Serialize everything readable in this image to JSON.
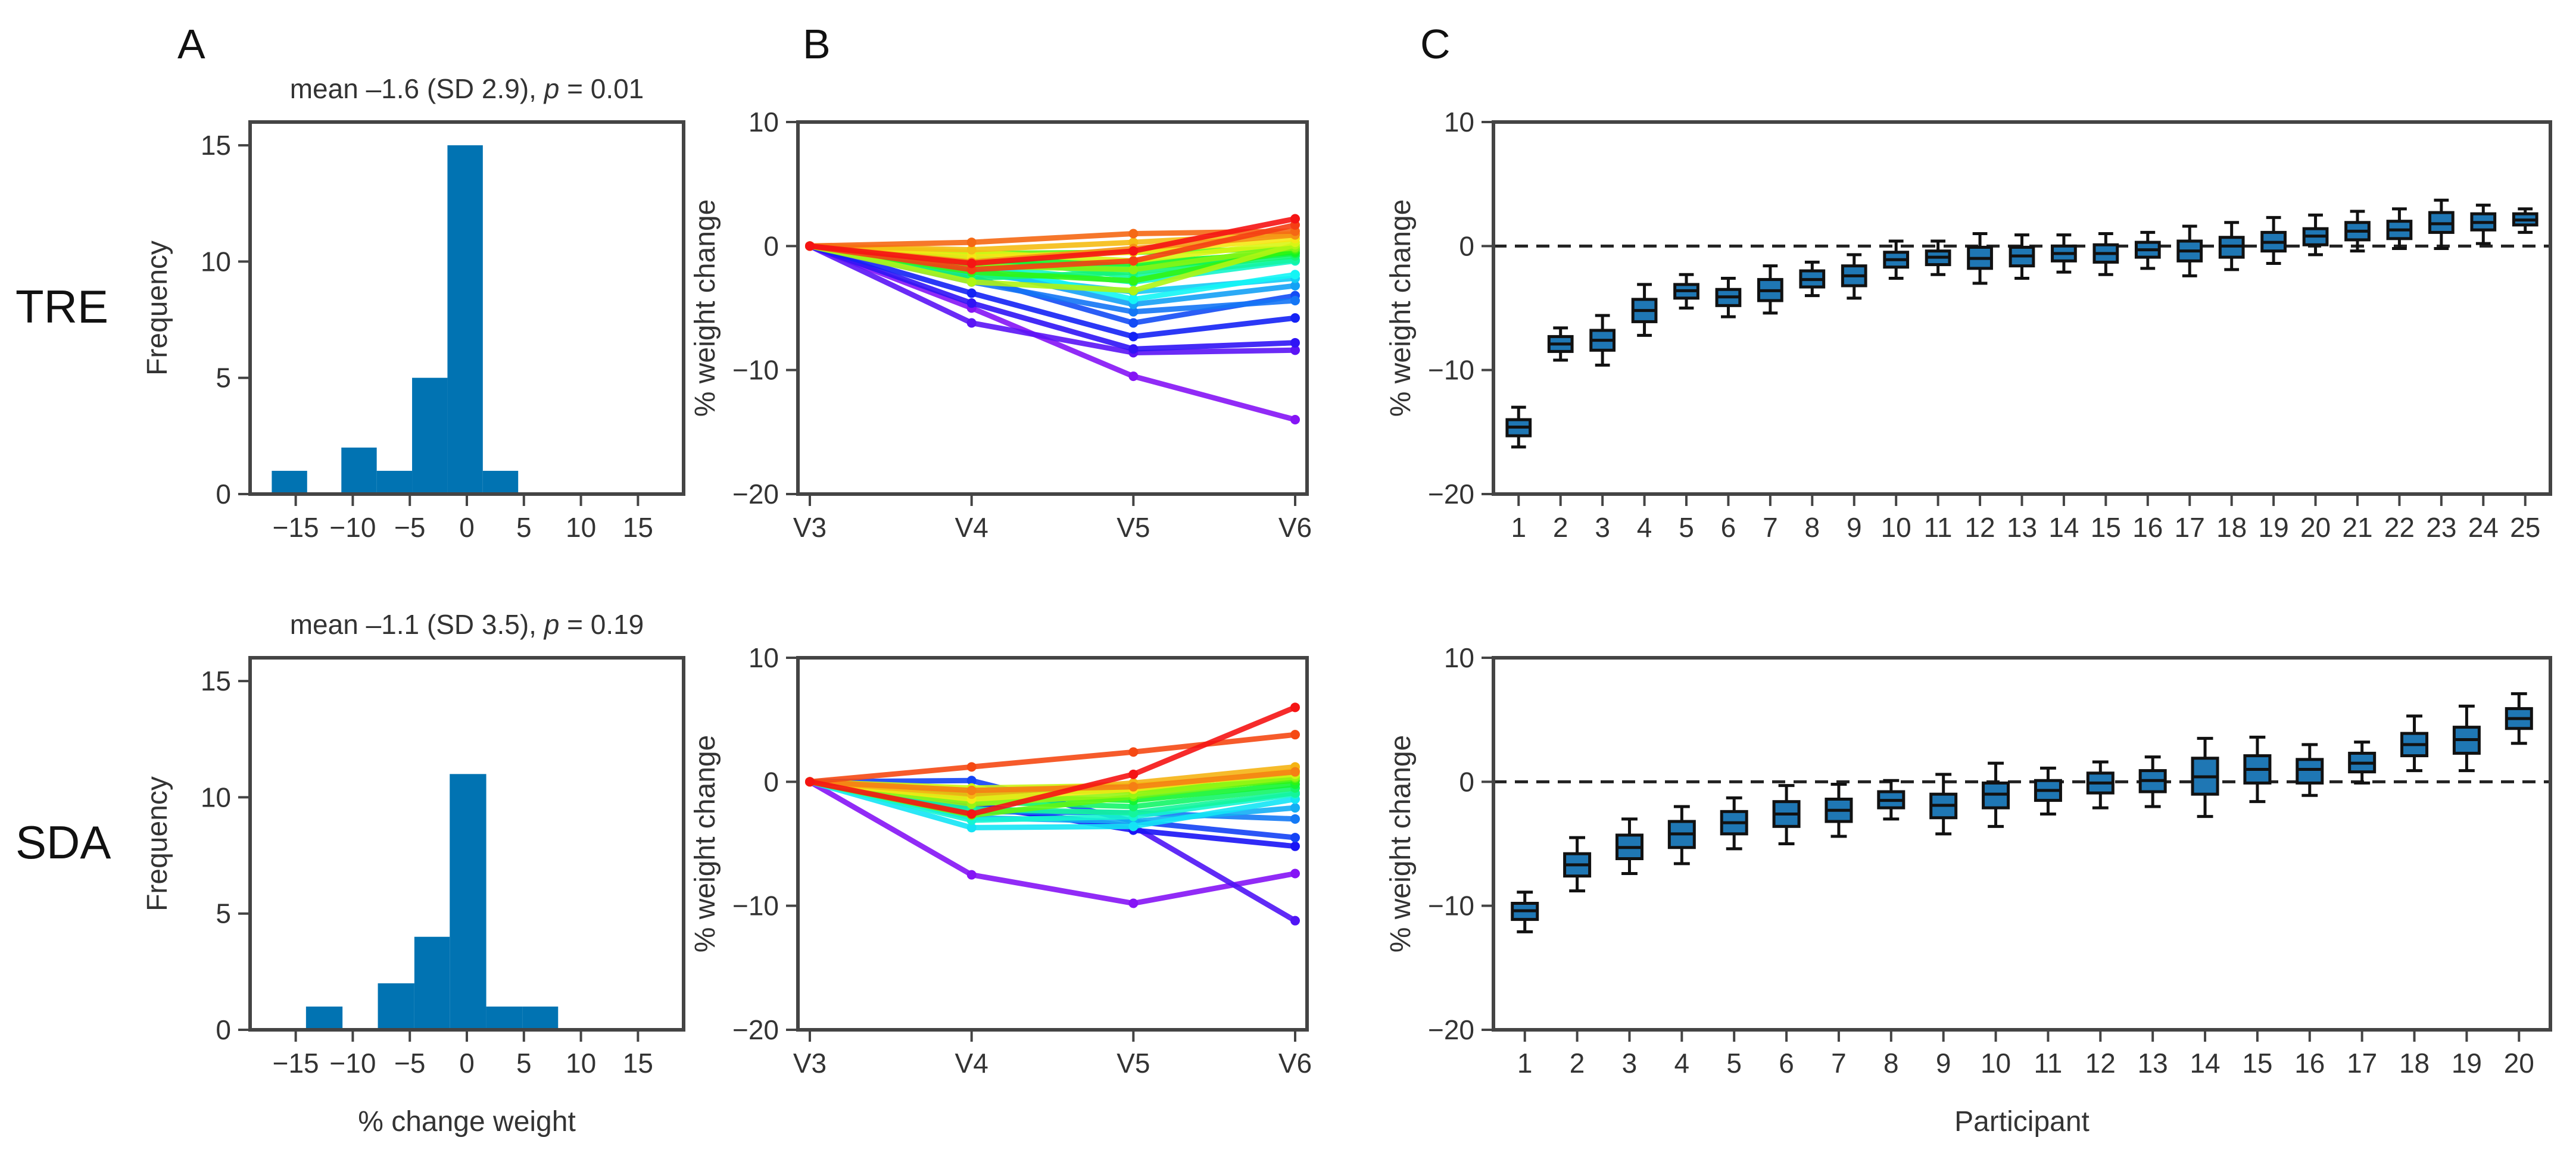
{
  "figure": {
    "panel_labels": [
      "A",
      "B",
      "C"
    ],
    "row_labels": [
      "TRE",
      "SDA"
    ]
  },
  "colors": {
    "bar": "#0173B2",
    "axis": "#444444",
    "text": "#333333",
    "box_fill": "#1f77b4",
    "spaghetti_palette": "rainbow"
  },
  "chart_data": [
    {
      "id": "A_TRE",
      "type": "bar",
      "subtitle": {
        "prefix": "mean –1.6 (SD 2.9), ",
        "p_label": "p",
        "suffix": " = 0.01"
      },
      "xlabel": "",
      "ylabel": "Frequency",
      "xlim": [
        -19,
        19
      ],
      "ylim": [
        0,
        16
      ],
      "xticks": [
        -15,
        -10,
        -5,
        0,
        5,
        10,
        15
      ],
      "xtick_labels": [
        "−15",
        "−10",
        "−5",
        "0",
        "5",
        "10",
        "15"
      ],
      "yticks": [
        0,
        5,
        10,
        15
      ],
      "ytick_labels": [
        "0",
        "5",
        "10",
        "15"
      ],
      "bins": [
        {
          "x0": -17.1,
          "x1": -14.0,
          "count": 1
        },
        {
          "x0": -11.0,
          "x1": -7.9,
          "count": 2
        },
        {
          "x0": -7.9,
          "x1": -4.8,
          "count": 1
        },
        {
          "x0": -4.8,
          "x1": -1.7,
          "count": 5
        },
        {
          "x0": -1.7,
          "x1": 1.4,
          "count": 15
        },
        {
          "x0": 1.4,
          "x1": 4.5,
          "count": 1
        }
      ]
    },
    {
      "id": "A_SDA",
      "type": "bar",
      "subtitle": {
        "prefix": "mean –1.1 (SD 3.5), ",
        "p_label": "p",
        "suffix": " = 0.19"
      },
      "xlabel": "% change weight",
      "ylabel": "Frequency",
      "xlim": [
        -19,
        19
      ],
      "ylim": [
        0,
        16
      ],
      "xticks": [
        -15,
        -10,
        -5,
        0,
        5,
        10,
        15
      ],
      "xtick_labels": [
        "−15",
        "−10",
        "−5",
        "0",
        "5",
        "10",
        "15"
      ],
      "yticks": [
        0,
        5,
        10,
        15
      ],
      "ytick_labels": [
        "0",
        "5",
        "10",
        "15"
      ],
      "bins": [
        {
          "x0": -14.1,
          "x1": -10.9,
          "count": 1
        },
        {
          "x0": -7.8,
          "x1": -4.6,
          "count": 2
        },
        {
          "x0": -4.6,
          "x1": -1.5,
          "count": 4
        },
        {
          "x0": -1.5,
          "x1": 1.7,
          "count": 11
        },
        {
          "x0": 1.7,
          "x1": 4.9,
          "count": 1
        },
        {
          "x0": 4.9,
          "x1": 8.0,
          "count": 1
        }
      ]
    },
    {
      "id": "B_TRE",
      "type": "line",
      "xlabel": "",
      "ylabel": "% weight change",
      "categories": [
        "V3",
        "V4",
        "V5",
        "V6"
      ],
      "ylim": [
        -20,
        10
      ],
      "yticks": [
        -20,
        -10,
        0,
        10
      ],
      "ytick_labels": [
        "−20",
        "−10",
        "0",
        "10"
      ],
      "series": [
        {
          "name": "1",
          "values": [
            0,
            -5.0,
            -10.5,
            -14.0
          ]
        },
        {
          "name": "2",
          "values": [
            0,
            -6.2,
            -8.6,
            -8.4
          ]
        },
        {
          "name": "3",
          "values": [
            0,
            -4.6,
            -8.3,
            -7.8
          ]
        },
        {
          "name": "4",
          "values": [
            0,
            -3.8,
            -7.3,
            -5.8
          ]
        },
        {
          "name": "5",
          "values": [
            0,
            -2.5,
            -6.2,
            -4.0
          ]
        },
        {
          "name": "6",
          "values": [
            0,
            -2.9,
            -5.3,
            -4.4
          ]
        },
        {
          "name": "7",
          "values": [
            0,
            -1.8,
            -4.7,
            -3.2
          ]
        },
        {
          "name": "8",
          "values": [
            0,
            -2.2,
            -3.7,
            -2.6
          ]
        },
        {
          "name": "9",
          "values": [
            0,
            -1.3,
            -4.3,
            -2.3
          ]
        },
        {
          "name": "10",
          "values": [
            0,
            -1.6,
            -2.9,
            -1.2
          ]
        },
        {
          "name": "11",
          "values": [
            0,
            -0.8,
            -2.5,
            -1.1
          ]
        },
        {
          "name": "12",
          "values": [
            0,
            -2.6,
            -2.1,
            -0.8
          ]
        },
        {
          "name": "13",
          "values": [
            0,
            -1.5,
            -1.8,
            -0.6
          ]
        },
        {
          "name": "14",
          "values": [
            0,
            -1.1,
            -1.4,
            -0.5
          ]
        },
        {
          "name": "15",
          "values": [
            0,
            -2.1,
            -2.8,
            -0.3
          ]
        },
        {
          "name": "16",
          "values": [
            0,
            -0.6,
            -0.5,
            -0.2
          ]
        },
        {
          "name": "17",
          "values": [
            0,
            -1.6,
            -1.9,
            -0.1
          ]
        },
        {
          "name": "18",
          "values": [
            0,
            -2.9,
            -3.6,
            0.1
          ]
        },
        {
          "name": "19",
          "values": [
            0,
            -0.5,
            -1.2,
            0.3
          ]
        },
        {
          "name": "20",
          "values": [
            0,
            -0.9,
            -0.5,
            0.6
          ]
        },
        {
          "name": "21",
          "values": [
            0,
            -0.3,
            0.3,
            1.0
          ]
        },
        {
          "name": "22",
          "values": [
            0,
            -1.3,
            -0.2,
            0.9
          ]
        },
        {
          "name": "23",
          "values": [
            0,
            0.3,
            1.0,
            1.2
          ]
        },
        {
          "name": "24",
          "values": [
            0,
            -1.9,
            -1.2,
            1.7
          ]
        },
        {
          "name": "25",
          "values": [
            0,
            -1.4,
            -0.4,
            2.2
          ]
        }
      ]
    },
    {
      "id": "B_SDA",
      "type": "line",
      "xlabel": "",
      "ylabel": "% weight change",
      "categories": [
        "V3",
        "V4",
        "V5",
        "V6"
      ],
      "ylim": [
        -20,
        10
      ],
      "yticks": [
        -20,
        -10,
        0,
        10
      ],
      "ytick_labels": [
        "−20",
        "−10",
        "0",
        "10"
      ],
      "series": [
        {
          "name": "1",
          "values": [
            0,
            -7.5,
            -9.8,
            -7.4
          ]
        },
        {
          "name": "2",
          "values": [
            0,
            -2.0,
            -3.6,
            -11.2
          ]
        },
        {
          "name": "3",
          "values": [
            0,
            -1.8,
            -3.9,
            -5.2
          ]
        },
        {
          "name": "4",
          "values": [
            0,
            0.1,
            -3.2,
            -4.5
          ]
        },
        {
          "name": "5",
          "values": [
            0,
            -2.4,
            -2.5,
            -3.0
          ]
        },
        {
          "name": "6",
          "values": [
            0,
            -2.9,
            -3.2,
            -2.1
          ]
        },
        {
          "name": "7",
          "values": [
            0,
            -3.7,
            -3.6,
            -1.4
          ]
        },
        {
          "name": "8",
          "values": [
            0,
            -3.1,
            -2.8,
            -1.0
          ]
        },
        {
          "name": "9",
          "values": [
            0,
            -2.2,
            -2.5,
            -0.9
          ]
        },
        {
          "name": "10",
          "values": [
            0,
            -1.6,
            -2.0,
            -0.5
          ]
        },
        {
          "name": "11",
          "values": [
            0,
            -1.2,
            -1.5,
            -0.2
          ]
        },
        {
          "name": "12",
          "values": [
            0,
            -0.9,
            -0.7,
            0.1
          ]
        },
        {
          "name": "13",
          "values": [
            0,
            -2.7,
            -1.2,
            0.3
          ]
        },
        {
          "name": "14",
          "values": [
            0,
            -1.8,
            -1.0,
            0.4
          ]
        },
        {
          "name": "15",
          "values": [
            0,
            -0.5,
            -0.3,
            0.6
          ]
        },
        {
          "name": "16",
          "values": [
            0,
            -1.4,
            -0.6,
            0.9
          ]
        },
        {
          "name": "17",
          "values": [
            0,
            -1.0,
            -0.1,
            1.2
          ]
        },
        {
          "name": "18",
          "values": [
            0,
            -0.7,
            -0.4,
            0.8
          ]
        },
        {
          "name": "19",
          "values": [
            0,
            1.2,
            2.4,
            3.8
          ]
        },
        {
          "name": "20",
          "values": [
            0,
            -2.6,
            0.6,
            6.0
          ]
        }
      ]
    },
    {
      "id": "C_TRE",
      "type": "box",
      "xlabel": "",
      "ylabel": "% weight change",
      "ylim": [
        -20,
        10
      ],
      "yticks": [
        -20,
        -10,
        0,
        10
      ],
      "ytick_labels": [
        "−20",
        "−10",
        "0",
        "10"
      ],
      "reference_line": 0,
      "categories": [
        "1",
        "2",
        "3",
        "4",
        "5",
        "6",
        "7",
        "8",
        "9",
        "10",
        "11",
        "12",
        "13",
        "14",
        "15",
        "16",
        "17",
        "18",
        "19",
        "20",
        "21",
        "22",
        "23",
        "24",
        "25"
      ],
      "boxes": [
        {
          "min": -16.2,
          "q1": -15.3,
          "median": -14.6,
          "q3": -14.0,
          "max": -13.0
        },
        {
          "min": -9.2,
          "q1": -8.5,
          "median": -7.9,
          "q3": -7.3,
          "max": -6.6
        },
        {
          "min": -9.6,
          "q1": -8.4,
          "median": -7.6,
          "q3": -6.8,
          "max": -5.6
        },
        {
          "min": -7.2,
          "q1": -6.1,
          "median": -5.2,
          "q3": -4.3,
          "max": -3.1
        },
        {
          "min": -5.0,
          "q1": -4.2,
          "median": -3.6,
          "q3": -3.1,
          "max": -2.3
        },
        {
          "min": -5.7,
          "q1": -4.8,
          "median": -4.1,
          "q3": -3.5,
          "max": -2.6
        },
        {
          "min": -5.4,
          "q1": -4.4,
          "median": -3.6,
          "q3": -2.7,
          "max": -1.6
        },
        {
          "min": -4.0,
          "q1": -3.3,
          "median": -2.7,
          "q3": -2.0,
          "max": -1.3
        },
        {
          "min": -4.2,
          "q1": -3.2,
          "median": -2.4,
          "q3": -1.6,
          "max": -0.7
        },
        {
          "min": -2.6,
          "q1": -1.7,
          "median": -1.1,
          "q3": -0.5,
          "max": 0.4
        },
        {
          "min": -2.3,
          "q1": -1.5,
          "median": -0.9,
          "q3": -0.4,
          "max": 0.4
        },
        {
          "min": -3.0,
          "q1": -1.8,
          "median": -1.0,
          "q3": -0.1,
          "max": 1.0
        },
        {
          "min": -2.6,
          "q1": -1.6,
          "median": -0.8,
          "q3": -0.1,
          "max": 0.9
        },
        {
          "min": -2.1,
          "q1": -1.2,
          "median": -0.6,
          "q3": 0.0,
          "max": 0.9
        },
        {
          "min": -2.3,
          "q1": -1.3,
          "median": -0.6,
          "q3": 0.1,
          "max": 1.0
        },
        {
          "min": -1.8,
          "q1": -0.9,
          "median": -0.3,
          "q3": 0.3,
          "max": 1.1
        },
        {
          "min": -2.4,
          "q1": -1.2,
          "median": -0.4,
          "q3": 0.4,
          "max": 1.6
        },
        {
          "min": -1.9,
          "q1": -0.9,
          "median": 0.0,
          "q3": 0.7,
          "max": 1.9
        },
        {
          "min": -1.4,
          "q1": -0.4,
          "median": 0.3,
          "q3": 1.1,
          "max": 2.3
        },
        {
          "min": -0.7,
          "q1": 0.1,
          "median": 0.8,
          "q3": 1.4,
          "max": 2.5
        },
        {
          "min": -0.4,
          "q1": 0.5,
          "median": 1.2,
          "q3": 1.9,
          "max": 2.8
        },
        {
          "min": -0.2,
          "q1": 0.6,
          "median": 1.3,
          "q3": 2.0,
          "max": 3.0
        },
        {
          "min": -0.2,
          "q1": 1.1,
          "median": 1.8,
          "q3": 2.7,
          "max": 3.7
        },
        {
          "min": 0.2,
          "q1": 1.3,
          "median": 1.9,
          "q3": 2.6,
          "max": 3.3
        },
        {
          "min": 1.1,
          "q1": 1.7,
          "median": 2.1,
          "q3": 2.6,
          "max": 3.0
        }
      ]
    },
    {
      "id": "C_SDA",
      "type": "box",
      "xlabel": "Participant",
      "ylabel": "% weight change",
      "ylim": [
        -20,
        10
      ],
      "yticks": [
        -20,
        -10,
        0,
        10
      ],
      "ytick_labels": [
        "−20",
        "−10",
        "0",
        "10"
      ],
      "reference_line": 0,
      "categories": [
        "1",
        "2",
        "3",
        "4",
        "5",
        "6",
        "7",
        "8",
        "9",
        "10",
        "11",
        "12",
        "13",
        "14",
        "15",
        "16",
        "17",
        "18",
        "19",
        "20"
      ],
      "boxes": [
        {
          "min": -12.1,
          "q1": -11.1,
          "median": -10.4,
          "q3": -9.8,
          "max": -8.9
        },
        {
          "min": -8.8,
          "q1": -7.6,
          "median": -6.7,
          "q3": -5.8,
          "max": -4.5
        },
        {
          "min": -7.4,
          "q1": -6.2,
          "median": -5.3,
          "q3": -4.3,
          "max": -3.0
        },
        {
          "min": -6.6,
          "q1": -5.3,
          "median": -4.2,
          "q3": -3.2,
          "max": -2.0
        },
        {
          "min": -5.4,
          "q1": -4.2,
          "median": -3.3,
          "q3": -2.4,
          "max": -1.3
        },
        {
          "min": -5.0,
          "q1": -3.6,
          "median": -2.6,
          "q3": -1.6,
          "max": -0.3
        },
        {
          "min": -4.4,
          "q1": -3.2,
          "median": -2.3,
          "q3": -1.4,
          "max": -0.2
        },
        {
          "min": -3.0,
          "q1": -2.1,
          "median": -1.5,
          "q3": -0.8,
          "max": 0.1
        },
        {
          "min": -4.2,
          "q1": -2.9,
          "median": -1.9,
          "q3": -1.0,
          "max": 0.6
        },
        {
          "min": -3.6,
          "q1": -2.1,
          "median": -1.0,
          "q3": -0.1,
          "max": 1.5
        },
        {
          "min": -2.6,
          "q1": -1.5,
          "median": -0.7,
          "q3": 0.1,
          "max": 1.1
        },
        {
          "min": -2.1,
          "q1": -0.9,
          "median": -0.1,
          "q3": 0.7,
          "max": 1.6
        },
        {
          "min": -2.0,
          "q1": -0.8,
          "median": 0.1,
          "q3": 0.9,
          "max": 2.0
        },
        {
          "min": -2.8,
          "q1": -1.0,
          "median": 0.4,
          "q3": 1.9,
          "max": 3.5
        },
        {
          "min": -1.6,
          "q1": -0.1,
          "median": 1.0,
          "q3": 2.1,
          "max": 3.6
        },
        {
          "min": -1.1,
          "q1": -0.1,
          "median": 1.0,
          "q3": 1.8,
          "max": 3.0
        },
        {
          "min": -0.1,
          "q1": 0.8,
          "median": 1.5,
          "q3": 2.3,
          "max": 3.2
        },
        {
          "min": 0.9,
          "q1": 2.1,
          "median": 3.0,
          "q3": 3.9,
          "max": 5.3
        },
        {
          "min": 0.9,
          "q1": 2.3,
          "median": 3.4,
          "q3": 4.4,
          "max": 6.1
        },
        {
          "min": 3.1,
          "q1": 4.3,
          "median": 5.1,
          "q3": 5.9,
          "max": 7.1
        }
      ]
    }
  ]
}
